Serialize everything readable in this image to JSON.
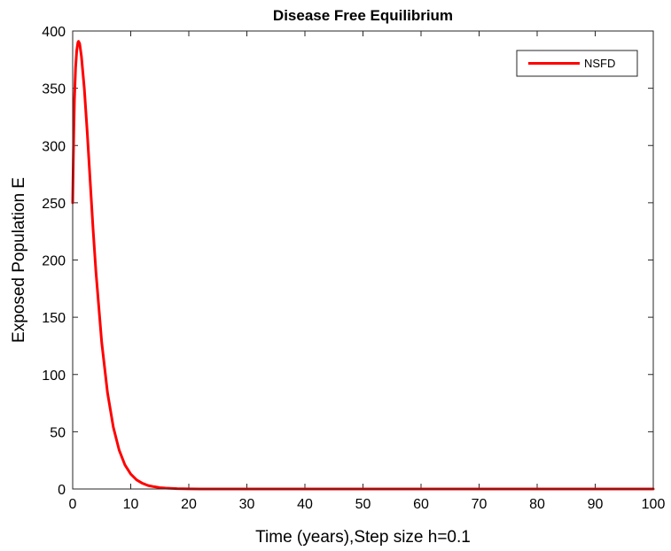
{
  "chart_data": {
    "type": "line",
    "title": "Disease Free Equilibrium",
    "xlabel": "Time (years),Step size h=0.1",
    "ylabel": "Exposed Population E",
    "xlim": [
      0,
      100
    ],
    "ylim": [
      0,
      400
    ],
    "xticks": [
      0,
      10,
      20,
      30,
      40,
      50,
      60,
      70,
      80,
      90,
      100
    ],
    "yticks": [
      0,
      50,
      100,
      150,
      200,
      250,
      300,
      350,
      400
    ],
    "xtick_labels": [
      "0",
      "10",
      "20",
      "30",
      "40",
      "50",
      "60",
      "70",
      "80",
      "90",
      "100"
    ],
    "ytick_labels": [
      "0",
      "50",
      "100",
      "150",
      "200",
      "250",
      "300",
      "350",
      "400"
    ],
    "grid": false,
    "legend_position": "top-right",
    "series": [
      {
        "name": "NSFD",
        "color": "#ff0000",
        "x": [
          0,
          0.1,
          0.2,
          0.3,
          0.5,
          0.7,
          0.9,
          1.0,
          1.2,
          1.5,
          2,
          2.5,
          3,
          3.5,
          4,
          5,
          6,
          7,
          8,
          9,
          10,
          11,
          12,
          13,
          14,
          15,
          16,
          18,
          20,
          22,
          25,
          30,
          40,
          50,
          60,
          70,
          80,
          90,
          100
        ],
        "y": [
          250,
          285,
          315,
          340,
          368,
          383,
          390,
          391,
          389,
          378,
          350,
          312,
          270,
          228,
          190,
          128,
          84,
          54,
          34,
          21,
          13,
          8,
          5,
          3,
          2,
          1.2,
          0.8,
          0.3,
          0.1,
          0.05,
          0,
          0,
          0,
          0,
          0,
          0,
          0,
          0,
          0
        ]
      }
    ]
  }
}
